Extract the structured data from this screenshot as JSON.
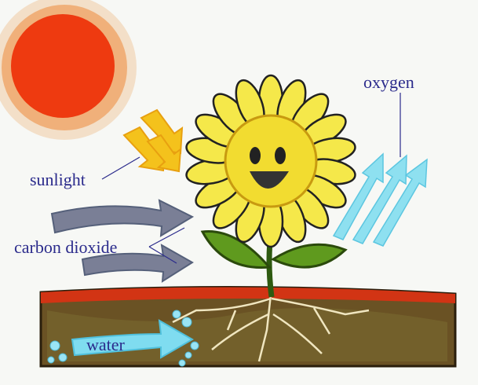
{
  "labels": [
    "oxygen",
    "sunlight",
    "carbon dioxide",
    "water"
  ]
}
